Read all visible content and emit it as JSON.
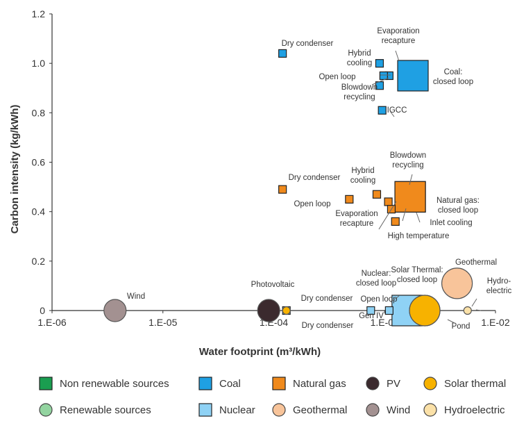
{
  "chart_data": {
    "type": "scatter",
    "xlabel": "Water footprint (m³/kWh)",
    "ylabel": "Carbon intensity (kg/kWh)",
    "x_scale": "log",
    "xlim": [
      1e-06,
      0.01
    ],
    "ylim": [
      0,
      1.2
    ],
    "x_ticks": [
      "1.E-06",
      "1.E-05",
      "1.E-04",
      "1.E-03",
      "1.E-02"
    ],
    "y_ticks": [
      "0",
      "0.2",
      "0.4",
      "0.6",
      "0.8",
      "1.0",
      "1.2"
    ],
    "legend_position": "bottom",
    "legend": [
      {
        "label": "Non renewable sources",
        "shape": "square",
        "color": "#1a9e50"
      },
      {
        "label": "Coal",
        "shape": "square",
        "color": "#1fa0e3"
      },
      {
        "label": "Natural gas",
        "shape": "square",
        "color": "#f08a1c"
      },
      {
        "label": "PV",
        "shape": "circle",
        "color": "#3b2a2e"
      },
      {
        "label": "Solar thermal",
        "shape": "circle",
        "color": "#f7b200"
      },
      {
        "label": "Renewable sources",
        "shape": "circle",
        "color": "#93d4a0"
      },
      {
        "label": "Nuclear",
        "shape": "square",
        "color": "#8fd2f5"
      },
      {
        "label": "Geothermal",
        "shape": "circle",
        "color": "#f8c49a"
      },
      {
        "label": "Wind",
        "shape": "circle",
        "color": "#a39191"
      },
      {
        "label": "Hydroelectric",
        "shape": "circle",
        "color": "#fbe1a8"
      }
    ],
    "points": [
      {
        "series": "Coal",
        "label": "Dry condenser",
        "x": 0.00012,
        "y": 1.04,
        "size": "small"
      },
      {
        "series": "Coal",
        "label": "Hybrid cooling",
        "x": 0.0009,
        "y": 1.0,
        "size": "small"
      },
      {
        "series": "Coal",
        "label": "Evaporation recapture",
        "x": 0.0011,
        "y": 0.95,
        "size": "small"
      },
      {
        "series": "Coal",
        "label": "Open loop",
        "x": 0.00098,
        "y": 0.95,
        "size": "small"
      },
      {
        "series": "Coal",
        "label": "Blowdown recycling",
        "x": 0.0009,
        "y": 0.91,
        "size": "small"
      },
      {
        "series": "Coal",
        "label": "Coal: closed loop",
        "x": 0.0018,
        "y": 0.95,
        "size": "large"
      },
      {
        "series": "Coal",
        "label": "IGCC",
        "x": 0.00095,
        "y": 0.81,
        "size": "small"
      },
      {
        "series": "Natural gas",
        "label": "Dry condenser",
        "x": 0.00012,
        "y": 0.49,
        "size": "small"
      },
      {
        "series": "Natural gas",
        "label": "Open loop",
        "x": 0.00048,
        "y": 0.45,
        "size": "small"
      },
      {
        "series": "Natural gas",
        "label": "Hybrid cooling",
        "x": 0.00085,
        "y": 0.47,
        "size": "small"
      },
      {
        "series": "Natural gas",
        "label": "Evaporation recapture",
        "x": 0.00108,
        "y": 0.44,
        "size": "small"
      },
      {
        "series": "Natural gas",
        "label": "Natural gas: closed loop",
        "x": 0.0017,
        "y": 0.46,
        "size": "large"
      },
      {
        "series": "Natural gas",
        "label": "High temperature",
        "x": 0.00125,
        "y": 0.36,
        "size": "small"
      },
      {
        "series": "Natural gas",
        "label": "Inlet cooling",
        "x": 0.00115,
        "y": 0.41,
        "size": "small"
      },
      {
        "series": "Natural gas",
        "label": "Blowdown recycling",
        "x": 0.0017,
        "y": 0.46,
        "size": "large"
      },
      {
        "series": "Nuclear",
        "label": "Dry condenser",
        "x": 0.00013,
        "y": 0.0,
        "size": "small"
      },
      {
        "series": "Nuclear",
        "label": "Gen IV",
        "x": 0.00075,
        "y": 0.0,
        "size": "small"
      },
      {
        "series": "Nuclear",
        "label": "Open loop",
        "x": 0.0011,
        "y": 0.0,
        "size": "small"
      },
      {
        "series": "Nuclear",
        "label": "Nuclear: closed loop",
        "x": 0.0016,
        "y": 0.0,
        "size": "large"
      },
      {
        "series": "Wind",
        "label": "Wind",
        "x": 3.7e-06,
        "y": 0.0,
        "size": "medium"
      },
      {
        "series": "PV",
        "label": "Photovoltaic",
        "x": 9e-05,
        "y": 0.0,
        "size": "medium"
      },
      {
        "series": "Solar thermal",
        "label": "Dry condenser",
        "x": 0.00013,
        "y": 0.0,
        "size": "small"
      },
      {
        "series": "Solar thermal",
        "label": "Solar Thermal: closed loop",
        "x": 0.0023,
        "y": 0.0,
        "size": "large"
      },
      {
        "series": "Solar thermal",
        "label": "Pond",
        "x": 0.0023,
        "y": 0.0,
        "size": "large"
      },
      {
        "series": "Geothermal",
        "label": "Geothermal",
        "x": 0.0045,
        "y": 0.11,
        "size": "large"
      },
      {
        "series": "Hydroelectric",
        "label": "Hydro-electric",
        "x": 0.0056,
        "y": 0.0,
        "size": "small"
      }
    ],
    "annotations": [
      "Dry condenser",
      "Evaporation recapture",
      "Hybrid cooling",
      "Open loop",
      "Blowdown recycling",
      "Coal: closed loop",
      "IGCC",
      "Blowdown recycling",
      "Hybrid cooling",
      "Dry condenser",
      "Open loop",
      "Natural gas: closed loop",
      "Evaporation recapture",
      "Inlet cooling",
      "High temperature",
      "Geothermal",
      "Solar Thermal: closed loop",
      "Nuclear: closed loop",
      "Hydro-electric",
      "Wind",
      "Photovoltaic",
      "Dry condenser",
      "Open loop",
      "Gen IV",
      "Dry condenser",
      "Pond"
    ]
  }
}
